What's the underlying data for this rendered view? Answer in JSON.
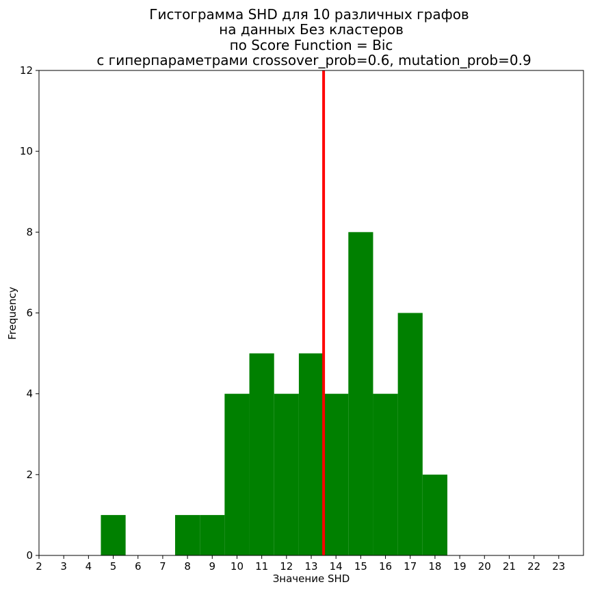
{
  "chart_data": {
    "type": "bar",
    "title_lines": [
      "Гистограмма SHD для 10 различных графов",
      "на данных Без кластеров",
      "по Score Function = Bic",
      "с гиперпараметрами crossover_prob=0.6, mutation_prob=0.9"
    ],
    "xlabel": "Значение SHD",
    "ylabel": "Frequency",
    "xlim": [
      2,
      24
    ],
    "ylim": [
      0,
      12
    ],
    "x_ticks": [
      2,
      3,
      4,
      5,
      6,
      7,
      8,
      9,
      10,
      11,
      12,
      13,
      14,
      15,
      16,
      17,
      18,
      19,
      20,
      21,
      22,
      23
    ],
    "y_ticks": [
      0,
      2,
      4,
      6,
      8,
      10,
      12
    ],
    "bins": [
      {
        "center": 5,
        "value": 1
      },
      {
        "center": 8,
        "value": 1
      },
      {
        "center": 9,
        "value": 1
      },
      {
        "center": 10,
        "value": 4
      },
      {
        "center": 11,
        "value": 5
      },
      {
        "center": 12,
        "value": 4
      },
      {
        "center": 13,
        "value": 5
      },
      {
        "center": 14,
        "value": 4
      },
      {
        "center": 15,
        "value": 8
      },
      {
        "center": 16,
        "value": 4
      },
      {
        "center": 17,
        "value": 6
      },
      {
        "center": 18,
        "value": 2
      }
    ],
    "bin_width": 1,
    "bar_color": "#008000",
    "reference_line": {
      "x": 13.5,
      "color": "#ff0000"
    },
    "grid": false
  }
}
